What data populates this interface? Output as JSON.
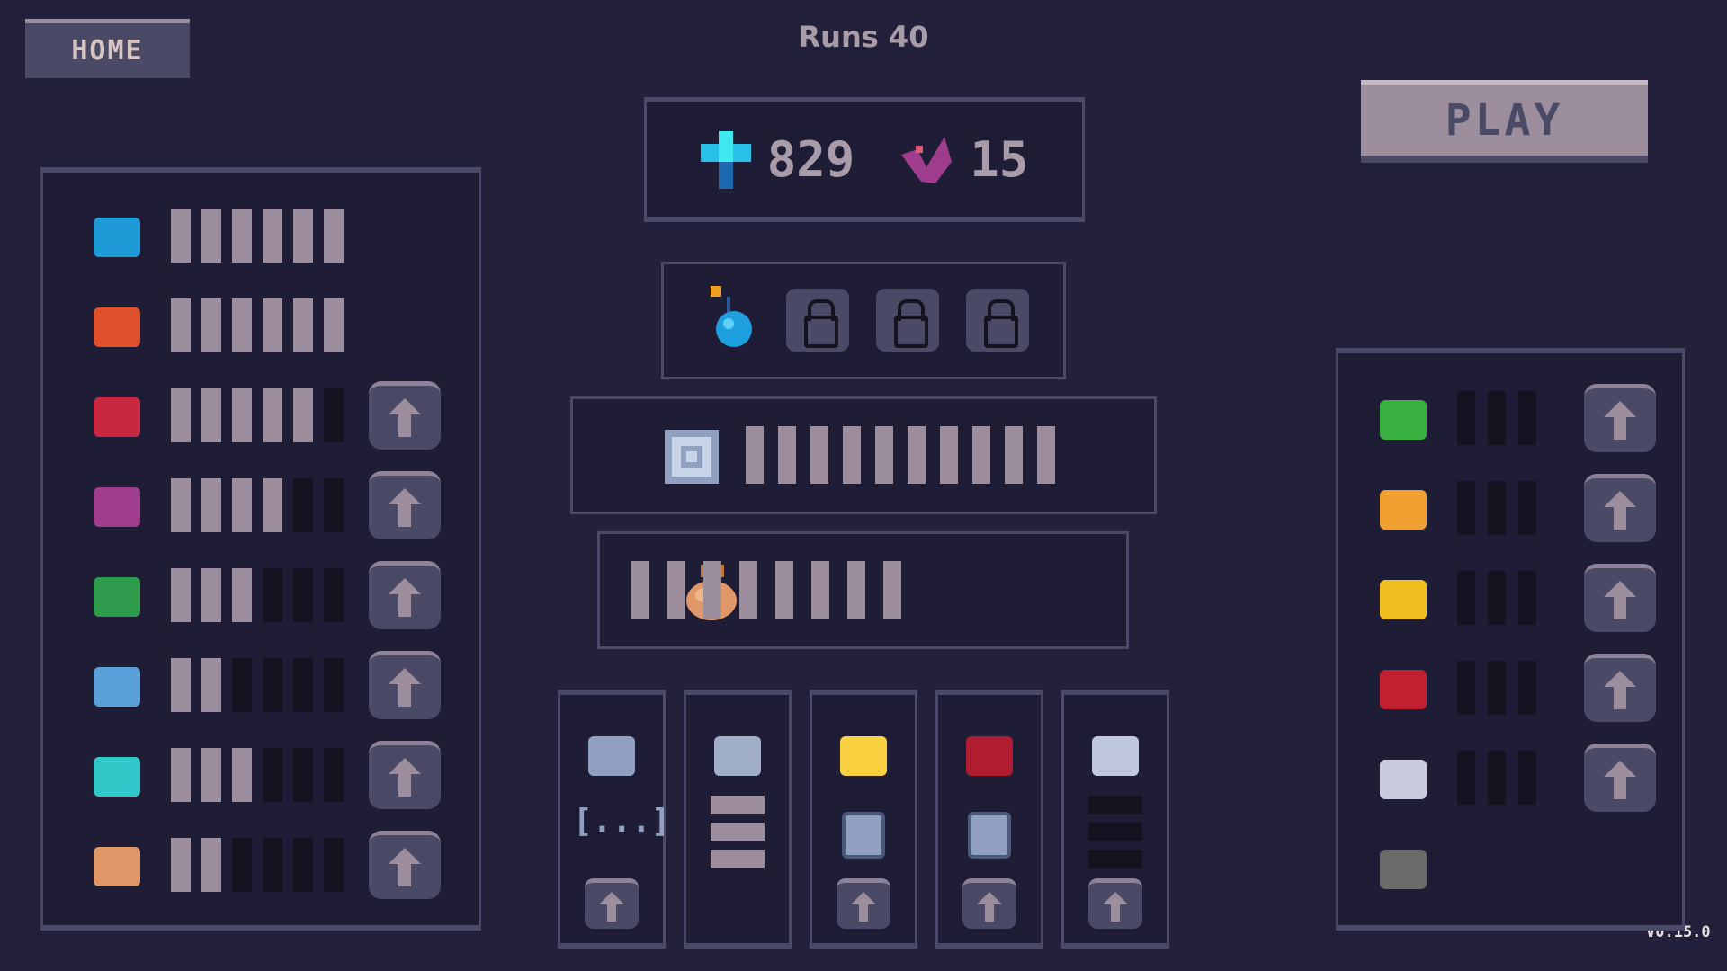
{
  "header": {
    "home_label": "HOME",
    "runs_label": "Runs 40",
    "play_label": "PLAY",
    "version": "V0.15.0"
  },
  "currency": {
    "gems": {
      "icon": "blue-crystal-icon",
      "value": "829"
    },
    "souls": {
      "icon": "pink-bird-icon",
      "value": "15"
    }
  },
  "bomb_slots": {
    "unlocked_icon": "bomb-icon",
    "locked_count": 3
  },
  "shield_track": {
    "icon": "shield-square-icon",
    "filled": 10,
    "total": 10
  },
  "bag_track": {
    "icon": "loot-bag-icon",
    "filled": 8,
    "total": 8
  },
  "left_upgrades": [
    {
      "icon": "blue-ship-icon",
      "color": "#1e9ad6",
      "filled": 6,
      "total": 6,
      "upgradable": false
    },
    {
      "icon": "fire-cannon-icon",
      "color": "#e0502a",
      "filled": 6,
      "total": 6,
      "upgradable": false
    },
    {
      "icon": "red-potion-icon",
      "color": "#c82840",
      "filled": 5,
      "total": 6,
      "upgradable": true
    },
    {
      "icon": "pink-grid-orb-icon",
      "color": "#a03c8c",
      "filled": 4,
      "total": 6,
      "upgradable": true
    },
    {
      "icon": "green-chest-icon",
      "color": "#2e9a4c",
      "filled": 3,
      "total": 6,
      "upgradable": true
    },
    {
      "icon": "frost-cross-icon",
      "color": "#5aa0d8",
      "filled": 2,
      "total": 6,
      "upgradable": true
    },
    {
      "icon": "cyan-mesh-icon",
      "color": "#30c8c8",
      "filled": 3,
      "total": 6,
      "upgradable": true
    },
    {
      "icon": "magnet-icon",
      "color": "#e09868",
      "filled": 2,
      "total": 6,
      "upgradable": true
    }
  ],
  "right_upgrades": [
    {
      "icon": "green-block-icon",
      "color": "#38b040",
      "filled": 0,
      "total": 3,
      "upgradable": true
    },
    {
      "icon": "orange-hand-icon",
      "color": "#f0a030",
      "filled": 0,
      "total": 3,
      "upgradable": true
    },
    {
      "icon": "gold-coin-s-icon",
      "color": "#f0c020",
      "filled": 0,
      "total": 3,
      "upgradable": true
    },
    {
      "icon": "red-claw-icon",
      "color": "#c02030",
      "filled": 0,
      "total": 3,
      "upgradable": true
    },
    {
      "icon": "white-castle-icon",
      "color": "#c8ccdc",
      "filled": 0,
      "total": 3,
      "upgradable": true
    },
    {
      "icon": "grey-shield-icon",
      "color": "#6a6a6a",
      "filled": 0,
      "total": 0,
      "upgradable": false
    }
  ],
  "bottom_columns": [
    {
      "icon": "tower-icon",
      "color": "#8fa0c0",
      "secondary": "bracket-dots-icon",
      "secondary_text": "[...]",
      "upgradable": true
    },
    {
      "icon": "lock-bottle-icon",
      "color": "#a0aec8",
      "bars_filled": 3,
      "bars_total": 3,
      "upgradable": false
    },
    {
      "icon": "sun-fire-icon",
      "color": "#f8d040",
      "secondary": "dice-icon",
      "upgradable": true
    },
    {
      "icon": "demon-mask-icon",
      "color": "#b01c30",
      "secondary": "dice-icon",
      "upgradable": true
    },
    {
      "icon": "hourglass-arrow-icon",
      "color": "#c0c8e0",
      "bars_filled": 0,
      "bars_total": 3,
      "upgradable": true
    }
  ],
  "colors": {
    "background": "#22203a",
    "panel": "#1f1d36",
    "border": "#4a4a68",
    "bar_fill": "#9c8e9c",
    "bar_empty": "#15131f",
    "button": "#4b4a66"
  }
}
